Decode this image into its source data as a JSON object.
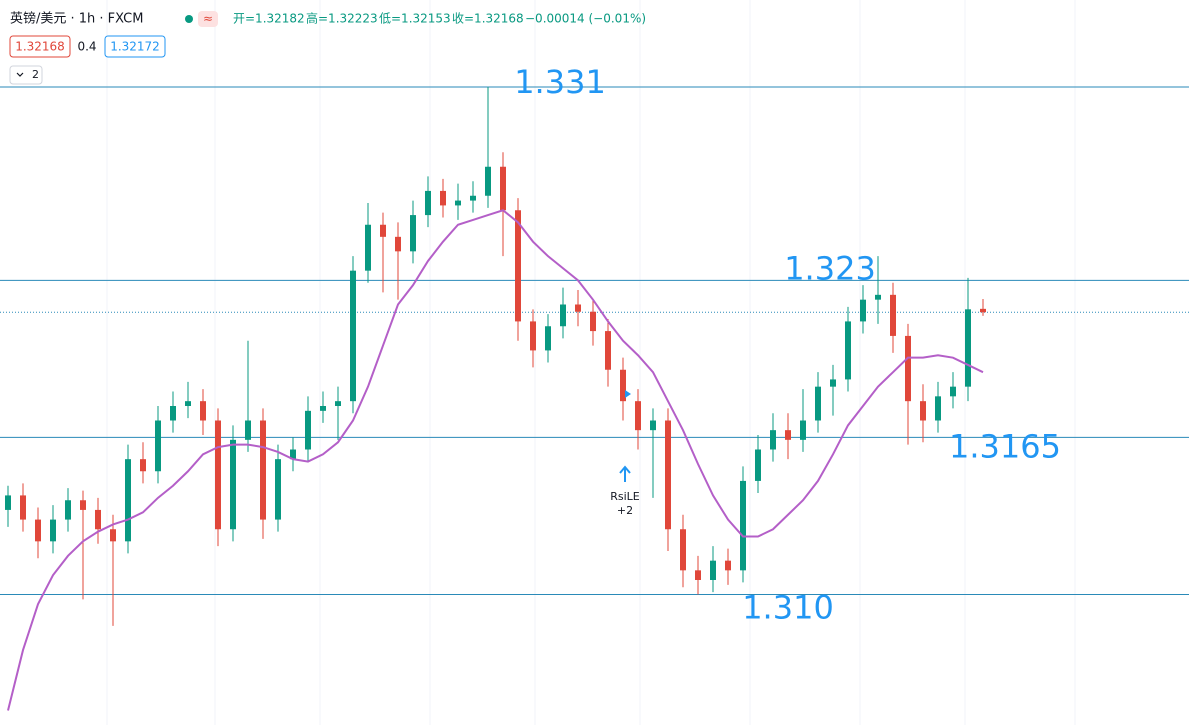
{
  "header": {
    "symbol": "英镑/美元 · 1h · FXCM",
    "open": "开=1.32182",
    "high": "高=1.32223",
    "low": "低=1.32153",
    "close": "收=1.32168",
    "change": "−0.00014 (−0.01%)"
  },
  "price_boxes": {
    "bid": "1.32168",
    "spread": "0.4",
    "ask": "1.32172"
  },
  "indicator_count": "2",
  "chart_data": {
    "type": "candlestick",
    "up_color": "#089981",
    "down_color": "#e0473a",
    "ylim": [
      1.3046,
      1.3346
    ],
    "ohlc": [
      [
        1.3135,
        1.3145,
        1.3128,
        1.3141
      ],
      [
        1.3141,
        1.3146,
        1.3126,
        1.3131
      ],
      [
        1.3131,
        1.3136,
        1.3115,
        1.3122
      ],
      [
        1.3122,
        1.3137,
        1.3117,
        1.3131
      ],
      [
        1.3131,
        1.3144,
        1.3126,
        1.3139
      ],
      [
        1.3139,
        1.3143,
        1.3098,
        1.3135
      ],
      [
        1.3135,
        1.314,
        1.3121,
        1.3127
      ],
      [
        1.3127,
        1.3133,
        1.3087,
        1.3122
      ],
      [
        1.3122,
        1.3162,
        1.3117,
        1.3156
      ],
      [
        1.3156,
        1.3163,
        1.3146,
        1.3151
      ],
      [
        1.3151,
        1.3178,
        1.3146,
        1.3172
      ],
      [
        1.3172,
        1.3184,
        1.3167,
        1.3178
      ],
      [
        1.3178,
        1.3188,
        1.3173,
        1.318
      ],
      [
        1.318,
        1.3185,
        1.3166,
        1.3172
      ],
      [
        1.3172,
        1.3177,
        1.312,
        1.3127
      ],
      [
        1.3127,
        1.317,
        1.3122,
        1.3164
      ],
      [
        1.3164,
        1.3205,
        1.3159,
        1.3172
      ],
      [
        1.3172,
        1.3177,
        1.3123,
        1.3131
      ],
      [
        1.3131,
        1.3162,
        1.3126,
        1.3156
      ],
      [
        1.3156,
        1.3165,
        1.3151,
        1.316
      ],
      [
        1.316,
        1.3182,
        1.3155,
        1.3176
      ],
      [
        1.3176,
        1.3184,
        1.3171,
        1.3178
      ],
      [
        1.3178,
        1.3186,
        1.3164,
        1.318
      ],
      [
        1.318,
        1.324,
        1.3175,
        1.3234
      ],
      [
        1.3234,
        1.3262,
        1.3229,
        1.3253
      ],
      [
        1.3253,
        1.3258,
        1.3225,
        1.3248
      ],
      [
        1.3248,
        1.3254,
        1.3222,
        1.3242
      ],
      [
        1.3242,
        1.3263,
        1.3237,
        1.3257
      ],
      [
        1.3257,
        1.3273,
        1.3252,
        1.3267
      ],
      [
        1.3267,
        1.3272,
        1.3256,
        1.3261
      ],
      [
        1.3261,
        1.327,
        1.3255,
        1.3263
      ],
      [
        1.3263,
        1.3271,
        1.3258,
        1.3265
      ],
      [
        1.3265,
        1.331,
        1.326,
        1.3277
      ],
      [
        1.3277,
        1.3283,
        1.324,
        1.3259
      ],
      [
        1.3259,
        1.3264,
        1.3205,
        1.3213
      ],
      [
        1.3213,
        1.3218,
        1.3194,
        1.3201
      ],
      [
        1.3201,
        1.3216,
        1.3196,
        1.3211
      ],
      [
        1.3211,
        1.3227,
        1.3206,
        1.322
      ],
      [
        1.322,
        1.3226,
        1.3211,
        1.3217
      ],
      [
        1.3217,
        1.3222,
        1.3203,
        1.3209
      ],
      [
        1.3209,
        1.3214,
        1.3186,
        1.3193
      ],
      [
        1.3193,
        1.3198,
        1.3172,
        1.318
      ],
      [
        1.318,
        1.3185,
        1.316,
        1.3168
      ],
      [
        1.3168,
        1.3177,
        1.314,
        1.3172
      ],
      [
        1.3172,
        1.3177,
        1.3118,
        1.3127
      ],
      [
        1.3127,
        1.3133,
        1.3103,
        1.311
      ],
      [
        1.311,
        1.3116,
        1.31,
        1.3106
      ],
      [
        1.3106,
        1.312,
        1.3101,
        1.3114
      ],
      [
        1.3114,
        1.3119,
        1.3104,
        1.311
      ],
      [
        1.311,
        1.3153,
        1.3105,
        1.3147
      ],
      [
        1.3147,
        1.3166,
        1.3142,
        1.316
      ],
      [
        1.316,
        1.3175,
        1.3155,
        1.3168
      ],
      [
        1.3168,
        1.3175,
        1.3156,
        1.3164
      ],
      [
        1.3164,
        1.3185,
        1.3159,
        1.3172
      ],
      [
        1.3172,
        1.3192,
        1.3167,
        1.3186
      ],
      [
        1.3186,
        1.3195,
        1.3174,
        1.3189
      ],
      [
        1.3189,
        1.3219,
        1.3184,
        1.3213
      ],
      [
        1.3213,
        1.3228,
        1.3208,
        1.3222
      ],
      [
        1.3222,
        1.324,
        1.3212,
        1.3224
      ],
      [
        1.3224,
        1.3229,
        1.32,
        1.3207
      ],
      [
        1.3207,
        1.3212,
        1.3162,
        1.318
      ],
      [
        1.318,
        1.3187,
        1.3163,
        1.3172
      ],
      [
        1.3172,
        1.3188,
        1.3167,
        1.3182
      ],
      [
        1.3182,
        1.3192,
        1.3177,
        1.3186
      ],
      [
        1.3186,
        1.3231,
        1.318,
        1.3218
      ],
      [
        1.32182,
        1.32223,
        1.32153,
        1.32168
      ]
    ],
    "ma": {
      "color": "#b45fc8",
      "values": [
        1.3052,
        1.3077,
        1.3096,
        1.3108,
        1.3116,
        1.3122,
        1.3126,
        1.3129,
        1.3131,
        1.3134,
        1.314,
        1.3145,
        1.3151,
        1.3158,
        1.3161,
        1.3162,
        1.3162,
        1.3161,
        1.3159,
        1.3156,
        1.3155,
        1.3158,
        1.3163,
        1.3172,
        1.3186,
        1.3203,
        1.322,
        1.3228,
        1.3238,
        1.3246,
        1.3253,
        1.3255,
        1.3257,
        1.3259,
        1.3254,
        1.3246,
        1.324,
        1.3235,
        1.323,
        1.3222,
        1.3213,
        1.3205,
        1.3199,
        1.3192,
        1.318,
        1.3168,
        1.3154,
        1.3141,
        1.3131,
        1.3124,
        1.3124,
        1.3127,
        1.3133,
        1.3139,
        1.3147,
        1.3158,
        1.317,
        1.3178,
        1.3186,
        1.3192,
        1.3198,
        1.3198,
        1.3199,
        1.3198,
        1.3195,
        1.3192
      ]
    },
    "levels": [
      {
        "value": 1.331,
        "label": "1.331"
      },
      {
        "value": 1.323,
        "label": "1.323"
      },
      {
        "value": 1.3165,
        "label": "1.3165"
      },
      {
        "value": 1.31,
        "label": "1.310"
      }
    ],
    "level_color": "#2a8ab8",
    "label_color": "#2196f3",
    "signal": {
      "text": "RsiLE",
      "count": "+2"
    }
  }
}
